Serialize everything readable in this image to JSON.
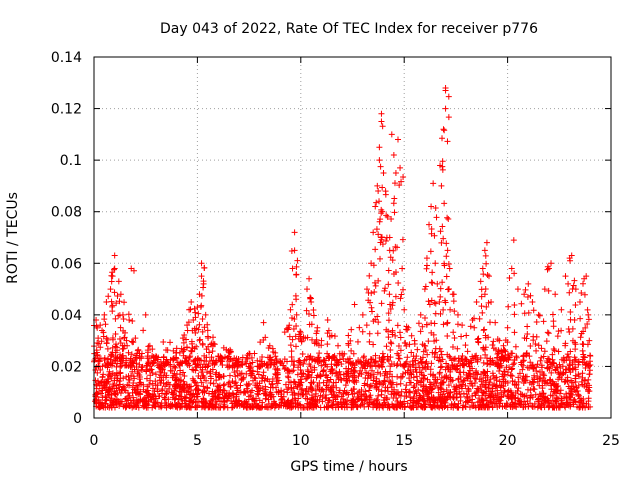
{
  "chart_data": {
    "type": "scatter",
    "title": "Day 043 of 2022, Rate Of TEC Index for receiver p776",
    "xlabel": "GPS time / hours",
    "ylabel": "ROTI / TECUs",
    "xlim": [
      0,
      25
    ],
    "ylim": [
      0,
      0.14
    ],
    "xticks": [
      0,
      5,
      10,
      15,
      20,
      25
    ],
    "yticks": [
      0,
      0.02,
      0.04,
      0.06,
      0.08,
      0.1,
      0.12,
      0.14
    ],
    "ytick_labels": [
      "0",
      "0.02",
      "0.04",
      "0.06",
      "0.08",
      "0.1",
      "0.12",
      "0.14"
    ],
    "grid": true,
    "marker": "+",
    "color": "#ff0000",
    "series": [
      {
        "name": "ROTI",
        "background_band": {
          "x_range": [
            0,
            24
          ],
          "y_range": [
            0.004,
            0.024
          ],
          "note": "dense cloud of points across full day"
        },
        "points": [
          [
            0.1,
            0.038
          ],
          [
            0.2,
            0.031
          ],
          [
            0.3,
            0.036
          ],
          [
            0.5,
            0.04
          ],
          [
            0.6,
            0.045
          ],
          [
            0.8,
            0.05
          ],
          [
            0.9,
            0.055
          ],
          [
            1.0,
            0.063
          ],
          [
            1.0,
            0.058
          ],
          [
            1.2,
            0.053
          ],
          [
            1.3,
            0.048
          ],
          [
            1.4,
            0.04
          ],
          [
            1.5,
            0.033
          ],
          [
            1.6,
            0.028
          ],
          [
            1.7,
            0.038
          ],
          [
            1.8,
            0.058
          ],
          [
            2.0,
            0.031
          ],
          [
            2.2,
            0.025
          ],
          [
            2.5,
            0.04
          ],
          [
            2.7,
            0.028
          ],
          [
            3.0,
            0.024
          ],
          [
            3.5,
            0.022
          ],
          [
            4.0,
            0.027
          ],
          [
            4.3,
            0.031
          ],
          [
            4.5,
            0.036
          ],
          [
            4.6,
            0.042
          ],
          [
            4.7,
            0.045
          ],
          [
            4.8,
            0.038
          ],
          [
            4.9,
            0.033
          ],
          [
            5.0,
            0.043
          ],
          [
            5.1,
            0.048
          ],
          [
            5.2,
            0.055
          ],
          [
            5.2,
            0.06
          ],
          [
            5.3,
            0.052
          ],
          [
            5.4,
            0.04
          ],
          [
            5.5,
            0.034
          ],
          [
            5.7,
            0.029
          ],
          [
            6.0,
            0.024
          ],
          [
            6.5,
            0.026
          ],
          [
            7.0,
            0.022
          ],
          [
            7.5,
            0.025
          ],
          [
            8.0,
            0.02
          ],
          [
            8.2,
            0.037
          ],
          [
            8.5,
            0.028
          ],
          [
            9.0,
            0.022
          ],
          [
            9.4,
            0.035
          ],
          [
            9.5,
            0.042
          ],
          [
            9.6,
            0.058
          ],
          [
            9.7,
            0.072
          ],
          [
            9.7,
            0.065
          ],
          [
            9.8,
            0.04
          ],
          [
            10.0,
            0.033
          ],
          [
            10.3,
            0.05
          ],
          [
            10.4,
            0.054
          ],
          [
            10.5,
            0.045
          ],
          [
            10.8,
            0.035
          ],
          [
            11.0,
            0.03
          ],
          [
            11.3,
            0.038
          ],
          [
            11.5,
            0.032
          ],
          [
            11.8,
            0.028
          ],
          [
            12.0,
            0.025
          ],
          [
            12.3,
            0.032
          ],
          [
            12.6,
            0.044
          ],
          [
            13.0,
            0.04
          ],
          [
            13.2,
            0.05
          ],
          [
            13.4,
            0.06
          ],
          [
            13.5,
            0.072
          ],
          [
            13.6,
            0.082
          ],
          [
            13.7,
            0.09
          ],
          [
            13.8,
            0.1
          ],
          [
            13.8,
            0.105
          ],
          [
            13.9,
            0.115
          ],
          [
            13.9,
            0.118
          ],
          [
            14.0,
            0.095
          ],
          [
            14.1,
            0.088
          ],
          [
            14.2,
            0.078
          ],
          [
            14.3,
            0.07
          ],
          [
            14.3,
            0.065
          ],
          [
            14.4,
            0.11
          ],
          [
            14.5,
            0.102
          ],
          [
            14.6,
            0.095
          ],
          [
            14.7,
            0.108
          ],
          [
            14.8,
            0.097
          ],
          [
            14.9,
            0.058
          ],
          [
            15.0,
            0.042
          ],
          [
            15.2,
            0.035
          ],
          [
            15.5,
            0.03
          ],
          [
            15.8,
            0.04
          ],
          [
            16.0,
            0.05
          ],
          [
            16.1,
            0.062
          ],
          [
            16.2,
            0.075
          ],
          [
            16.3,
            0.082
          ],
          [
            16.4,
            0.091
          ],
          [
            16.5,
            0.06
          ],
          [
            16.6,
            0.052
          ],
          [
            16.7,
            0.045
          ],
          [
            16.8,
            0.09
          ],
          [
            16.9,
            0.112
          ],
          [
            17.0,
            0.12
          ],
          [
            17.0,
            0.127
          ],
          [
            17.0,
            0.128
          ],
          [
            17.1,
            0.065
          ],
          [
            17.2,
            0.058
          ],
          [
            17.4,
            0.048
          ],
          [
            17.6,
            0.04
          ],
          [
            17.8,
            0.036
          ],
          [
            18.0,
            0.032
          ],
          [
            18.3,
            0.038
          ],
          [
            18.5,
            0.045
          ],
          [
            18.7,
            0.053
          ],
          [
            18.8,
            0.058
          ],
          [
            18.9,
            0.065
          ],
          [
            19.0,
            0.068
          ],
          [
            19.1,
            0.055
          ],
          [
            19.2,
            0.045
          ],
          [
            19.4,
            0.037
          ],
          [
            19.6,
            0.03
          ],
          [
            19.8,
            0.028
          ],
          [
            20.0,
            0.035
          ],
          [
            20.2,
            0.058
          ],
          [
            20.3,
            0.069
          ],
          [
            20.5,
            0.05
          ],
          [
            20.8,
            0.048
          ],
          [
            21.0,
            0.052
          ],
          [
            21.2,
            0.045
          ],
          [
            21.5,
            0.04
          ],
          [
            21.8,
            0.05
          ],
          [
            22.0,
            0.058
          ],
          [
            22.1,
            0.06
          ],
          [
            22.3,
            0.048
          ],
          [
            22.6,
            0.042
          ],
          [
            22.8,
            0.055
          ],
          [
            23.0,
            0.062
          ],
          [
            23.1,
            0.063
          ],
          [
            23.3,
            0.05
          ],
          [
            23.5,
            0.045
          ],
          [
            23.7,
            0.054
          ],
          [
            23.8,
            0.055
          ],
          [
            23.9,
            0.04
          ],
          [
            23.95,
            0.03
          ]
        ]
      }
    ]
  }
}
